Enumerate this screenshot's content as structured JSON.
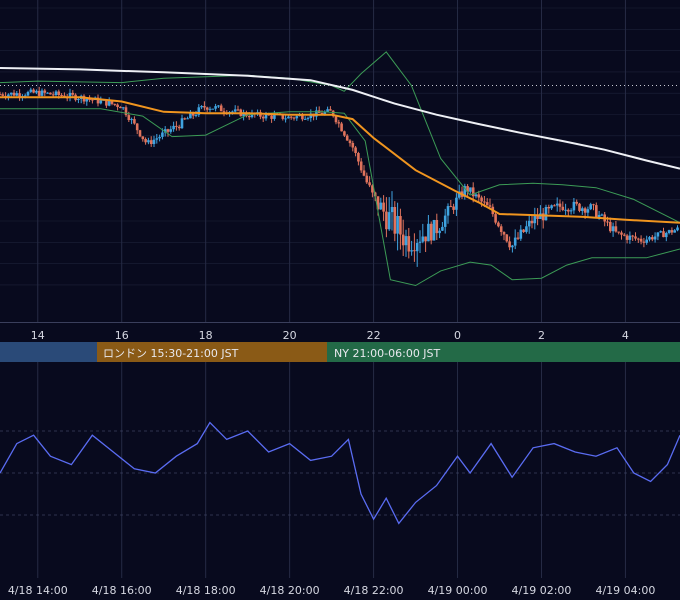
{
  "colors": {
    "background": "#080a1e",
    "grid": "#262b45",
    "bull_candle": "#3fa3e0",
    "bear_candle": "#e0735c",
    "ma_fast": "#f0951f",
    "ma_slow": "#eef0f5",
    "bollinger": "#3c9b56",
    "rsi_line": "#5a6cf2",
    "session_tokyo": "#2a4a78",
    "session_london": "#8a5a16",
    "session_ny": "#236a47"
  },
  "sessions": [
    {
      "id": "tokyo",
      "label": ""
    },
    {
      "id": "london",
      "label": "ロンドン 15:30-21:00 JST"
    },
    {
      "id": "ny",
      "label": "NY 21:00-06:00 JST"
    }
  ],
  "chart_data": [
    {
      "type": "candlestick",
      "title": "",
      "x_tick_labels": [
        "14",
        "16",
        "18",
        "20",
        "22",
        "0",
        "2",
        "4"
      ],
      "x_tick_hours": [
        14,
        16,
        18,
        20,
        22,
        24,
        26,
        28
      ],
      "xlim_hours": [
        13.1,
        29.3
      ],
      "y_axis_labels": "none",
      "ylim": [
        0,
        100
      ],
      "reference_level": 81,
      "series": [
        {
          "name": "",
          "kind": "candles_close",
          "x_hours": [
            13.1,
            14,
            15,
            16,
            16.6,
            17.3,
            18,
            19,
            20,
            21,
            21.5,
            22,
            22.8,
            23.5,
            24.2,
            24.8,
            25.3,
            25.8,
            26.5,
            27.2,
            27.8,
            28.4,
            29.3
          ],
          "values": [
            78,
            78.5,
            77,
            74,
            61,
            67,
            74,
            71,
            70,
            72,
            60,
            42,
            28,
            32,
            46,
            38,
            26,
            35,
            40,
            39,
            30,
            28,
            32
          ]
        },
        {
          "name": "",
          "kind": "ma_fast",
          "x_hours": [
            13.1,
            15,
            16,
            17,
            18,
            19,
            20,
            21,
            21.5,
            22,
            23,
            24,
            24.5,
            25,
            26,
            27,
            28,
            29.3
          ],
          "values": [
            77,
            77,
            75.5,
            72,
            71.5,
            71.5,
            71,
            71,
            69.5,
            63,
            52,
            44.5,
            41,
            37,
            36.5,
            36,
            35,
            34
          ]
        },
        {
          "name": "",
          "kind": "ma_slow",
          "x_hours": [
            13.1,
            15,
            17,
            19,
            20.5,
            21.5,
            22.5,
            23.5,
            24.5,
            25.5,
            26.5,
            27.5,
            28.5,
            29.3
          ],
          "values": [
            87,
            86.5,
            85.5,
            84.3,
            82.8,
            79.5,
            74.8,
            71,
            67.8,
            64.8,
            62,
            59,
            55.3,
            52.5
          ]
        },
        {
          "name": "",
          "kind": "bollinger_upper",
          "x_hours": [
            13.1,
            14,
            16,
            17,
            18,
            19,
            20,
            21,
            21.3,
            21.7,
            22.3,
            22.9,
            23.6,
            24.3,
            25,
            25.8,
            26.5,
            27.3,
            28.2,
            29.3
          ],
          "values": [
            82,
            82.5,
            82,
            83.5,
            84,
            84.5,
            83.5,
            81,
            79,
            85,
            92.5,
            81,
            56,
            43.5,
            47,
            47.5,
            47,
            46,
            42,
            34
          ]
        },
        {
          "name": "",
          "kind": "bollinger_lower",
          "x_hours": [
            13.1,
            14,
            15.5,
            16.5,
            17.2,
            18,
            19,
            20,
            20.8,
            21.3,
            21.8,
            22.4,
            23,
            23.6,
            24.3,
            24.8,
            25.3,
            26,
            26.6,
            27.2,
            28,
            28.5,
            29.3
          ],
          "values": [
            73,
            73,
            73,
            70.5,
            63.5,
            64,
            71,
            72,
            72,
            71.5,
            62,
            14.5,
            12.5,
            17.5,
            20.5,
            19.5,
            14.5,
            15,
            19.5,
            22,
            22,
            22,
            25
          ]
        }
      ]
    },
    {
      "type": "line",
      "title": "",
      "x_tick_labels": [
        "4/18 14:00",
        "4/18 16:00",
        "4/18 18:00",
        "4/18 20:00",
        "4/18 22:00",
        "4/19 00:00",
        "4/19 02:00",
        "4/19 04:00"
      ],
      "x_tick_hours": [
        14,
        16,
        18,
        20,
        22,
        24,
        26,
        28
      ],
      "xlim_hours": [
        13.1,
        29.3
      ],
      "ylim": [
        0,
        100
      ],
      "grid_levels": [
        30,
        50,
        70
      ],
      "series": [
        {
          "name": "",
          "x_hours": [
            13.1,
            13.5,
            13.9,
            14.3,
            14.8,
            15.3,
            15.8,
            16.3,
            16.8,
            17.3,
            17.8,
            18.1,
            18.5,
            19,
            19.5,
            20,
            20.5,
            21,
            21.4,
            21.7,
            22,
            22.3,
            22.6,
            23,
            23.5,
            24,
            24.3,
            24.8,
            25.3,
            25.8,
            26.3,
            26.8,
            27.3,
            27.8,
            28.2,
            28.6,
            29,
            29.3
          ],
          "values": [
            50,
            64,
            68,
            58,
            54,
            68,
            60,
            52,
            50,
            58,
            64,
            74,
            66,
            70,
            60,
            64,
            56,
            58,
            66,
            40,
            28,
            38,
            26,
            36,
            44,
            58,
            50,
            64,
            48,
            62,
            64,
            60,
            58,
            62,
            50,
            46,
            54,
            68
          ]
        }
      ]
    }
  ]
}
